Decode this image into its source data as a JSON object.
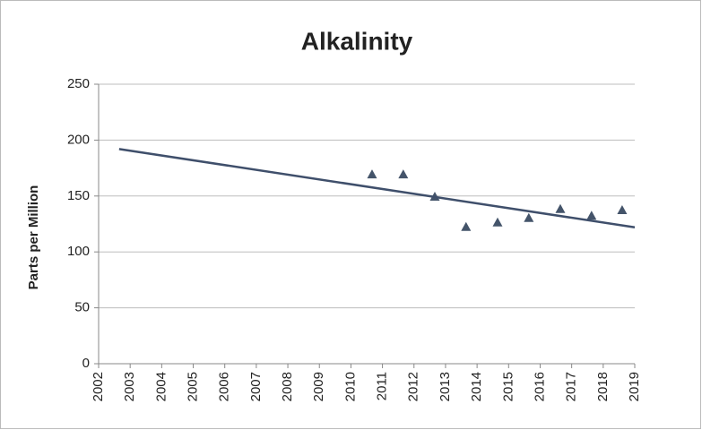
{
  "chart_data": {
    "type": "scatter",
    "title": "Alkalinity",
    "y_label": "Parts per Million",
    "series": [
      {
        "style": "markers",
        "color": "#44546a",
        "x": [
          2010.67,
          2011.66,
          2012.66,
          2013.65,
          2014.65,
          2015.64,
          2016.64,
          2017.63,
          2018.6
        ],
        "values": [
          169,
          169,
          149,
          122,
          126,
          130,
          138,
          132,
          137
        ]
      },
      {
        "style": "line",
        "color": "#3f4f6b",
        "x": [
          2002.65,
          2019
        ],
        "values": [
          192,
          122
        ]
      }
    ],
    "xlim": [
      2002,
      2019
    ],
    "xticks": [
      2002,
      2003,
      2004,
      2005,
      2006,
      2007,
      2008,
      2009,
      2010,
      2011,
      2012,
      2013,
      2014,
      2015,
      2016,
      2017,
      2018,
      2019
    ],
    "ylim": [
      0,
      250
    ],
    "yticks": [
      0,
      50,
      100,
      150,
      200,
      250
    ],
    "grid": true
  }
}
